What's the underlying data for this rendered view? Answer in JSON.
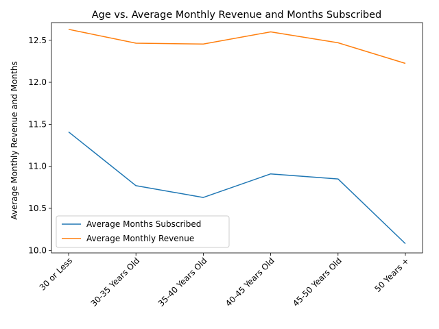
{
  "chart_data": {
    "type": "line",
    "title": "Age vs. Average Monthly Revenue and Months Subscribed",
    "xlabel": "",
    "ylabel": "Average Monthly Revenue and Months",
    "categories": [
      "30 or Less",
      "30-35 Years Old",
      "35-40 Years Old",
      "40-45 Years Old",
      "45-50 Years Old",
      "50 Years +"
    ],
    "yticks": [
      "10.0",
      "10.5",
      "11.0",
      "11.5",
      "12.0",
      "12.5"
    ],
    "ylim": [
      9.97,
      12.71
    ],
    "grid": false,
    "legend_position": "lower-left",
    "series": [
      {
        "name": "Average Months Subscribed",
        "color": "#1f77b4",
        "values": [
          11.41,
          10.77,
          10.63,
          10.91,
          10.85,
          10.08
        ]
      },
      {
        "name": "Average Monthly Revenue",
        "color": "#ff7f0e",
        "values": [
          12.63,
          12.465,
          12.455,
          12.6,
          12.47,
          12.225
        ]
      }
    ]
  }
}
